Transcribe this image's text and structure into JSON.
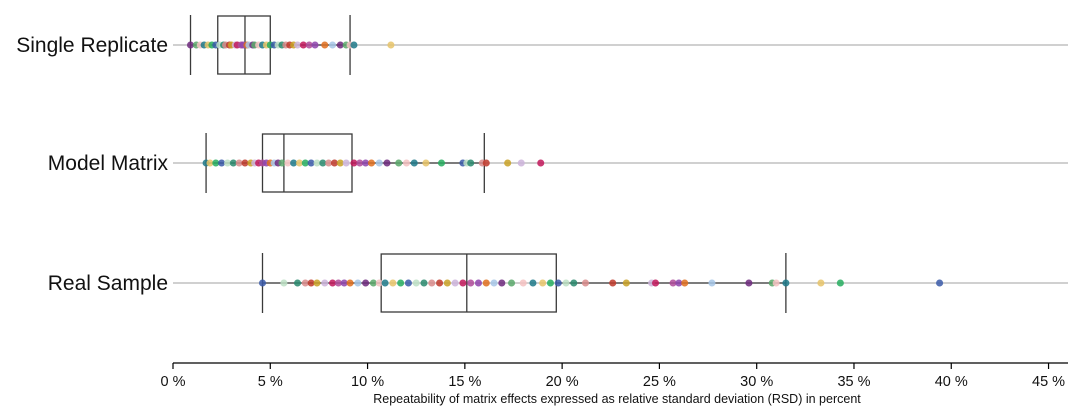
{
  "chart_data": {
    "type": "box_strip",
    "title": "",
    "xlabel": "Repeatability of matrix effects expressed as relative standard deviation (RSD) in percent",
    "ylabel": "",
    "xlim": [
      0,
      46
    ],
    "xticks": [
      0,
      5,
      10,
      15,
      20,
      25,
      30,
      35,
      40,
      45
    ],
    "xtick_labels": [
      "0 %",
      "5 %",
      "10 %",
      "15 %",
      "20 %",
      "25 %",
      "30 %",
      "35 %",
      "40 %",
      "45 %"
    ],
    "grid": false,
    "legend": "none",
    "categories": [
      "Single Replicate",
      "Model Matrix",
      "Real Sample"
    ],
    "boxes": [
      {
        "category": "Single Replicate",
        "whisker_low": 0.9,
        "q1": 2.3,
        "median": 3.7,
        "q3": 5.0,
        "whisker_high": 9.1
      },
      {
        "category": "Model Matrix",
        "whisker_low": 1.7,
        "q1": 4.6,
        "median": 5.7,
        "q3": 9.2,
        "whisker_high": 16.0
      },
      {
        "category": "Real Sample",
        "whisker_low": 4.6,
        "q1": 10.7,
        "median": 15.1,
        "q3": 19.7,
        "whisker_high": 31.5
      }
    ],
    "points": [
      {
        "category": "Single Replicate",
        "values": [
          0.9,
          1.2,
          1.4,
          1.6,
          1.8,
          2.0,
          2.2,
          2.4,
          2.6,
          2.7,
          2.9,
          3.0,
          3.2,
          3.3,
          3.5,
          3.6,
          3.8,
          3.9,
          4.1,
          4.2,
          4.4,
          4.6,
          4.8,
          5.0,
          5.2,
          5.4,
          5.6,
          5.8,
          6.0,
          6.2,
          6.4,
          6.7,
          7.0,
          7.3,
          7.8,
          8.2,
          8.6,
          8.9,
          9.1,
          9.3,
          11.2
        ]
      },
      {
        "category": "Model Matrix",
        "values": [
          1.7,
          1.9,
          2.2,
          2.5,
          2.8,
          3.1,
          3.4,
          3.7,
          4.0,
          4.2,
          4.4,
          4.6,
          4.8,
          5.0,
          5.2,
          5.4,
          5.6,
          5.9,
          6.2,
          6.5,
          6.8,
          7.1,
          7.4,
          7.7,
          8.0,
          8.3,
          8.6,
          8.9,
          9.3,
          9.6,
          9.9,
          10.2,
          10.6,
          11.0,
          11.6,
          12.0,
          12.4,
          13.0,
          13.8,
          14.9,
          15.1,
          15.3,
          15.9,
          16.1,
          17.2,
          17.9,
          18.9
        ]
      },
      {
        "category": "Real Sample",
        "values": [
          4.6,
          5.7,
          6.4,
          6.8,
          7.1,
          7.4,
          7.8,
          8.2,
          8.5,
          8.8,
          9.1,
          9.5,
          9.9,
          10.3,
          10.6,
          10.9,
          11.3,
          11.7,
          12.1,
          12.5,
          12.9,
          13.3,
          13.7,
          14.1,
          14.5,
          14.9,
          15.3,
          15.7,
          16.1,
          16.5,
          16.9,
          17.4,
          18.0,
          18.5,
          19.0,
          19.4,
          19.8,
          20.2,
          20.6,
          21.2,
          22.6,
          23.3,
          24.6,
          24.8,
          25.7,
          26.0,
          26.3,
          27.7,
          29.6,
          30.8,
          31.0,
          31.5,
          33.3,
          34.3,
          39.4
        ]
      }
    ],
    "colors": {
      "box_stroke": "#3a3a3a",
      "baseline": "#b3b3b3",
      "axis": "#000000",
      "points": [
        "#6e2a7e",
        "#c2185b",
        "#2a8a6e",
        "#1e7a8a",
        "#e07020",
        "#c9a227",
        "#3b5ba9",
        "#5aa86b",
        "#b04b9a",
        "#d98c8c",
        "#e7c46a",
        "#a7c7e7",
        "#cdb4db",
        "#bde0c5",
        "#f4c2c2",
        "#8e44ad",
        "#c0392b",
        "#27ae60"
      ]
    }
  }
}
